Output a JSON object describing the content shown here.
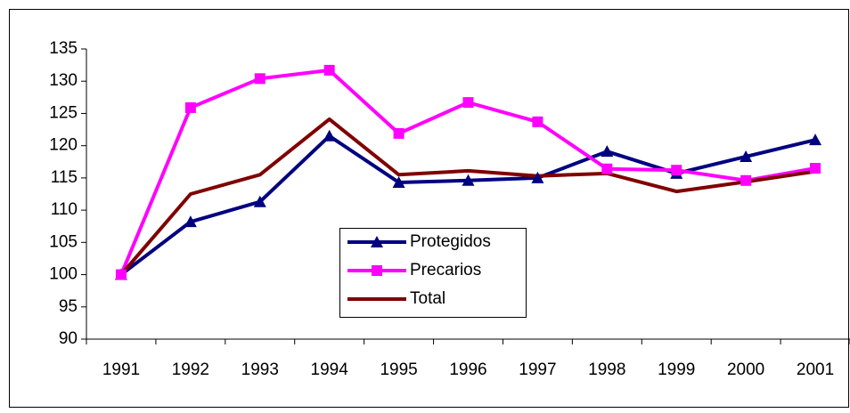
{
  "chart_data": {
    "type": "line",
    "categories": [
      "1991",
      "1992",
      "1993",
      "1994",
      "1995",
      "1996",
      "1997",
      "1998",
      "1999",
      "2000",
      "2001"
    ],
    "series": [
      {
        "name": "Protegidos",
        "color": "#000080",
        "marker": "triangle",
        "values": [
          100,
          108.2,
          111.3,
          121.5,
          114.3,
          114.6,
          115,
          119.1,
          115.7,
          118.3,
          120.9
        ]
      },
      {
        "name": "Precarios",
        "color": "#ff00ff",
        "marker": "square",
        "values": [
          100,
          125.9,
          130.4,
          131.7,
          121.9,
          126.7,
          123.7,
          116.4,
          116.2,
          114.6,
          116.5
        ]
      },
      {
        "name": "Total",
        "color": "#800000",
        "marker": "none",
        "values": [
          100,
          112.5,
          115.5,
          124.1,
          115.5,
          116.1,
          115.3,
          115.7,
          112.9,
          114.4,
          116
        ]
      }
    ],
    "ylim": [
      90,
      135
    ],
    "yticks": [
      90,
      95,
      100,
      105,
      110,
      115,
      120,
      125,
      130,
      135
    ],
    "grid": false
  }
}
